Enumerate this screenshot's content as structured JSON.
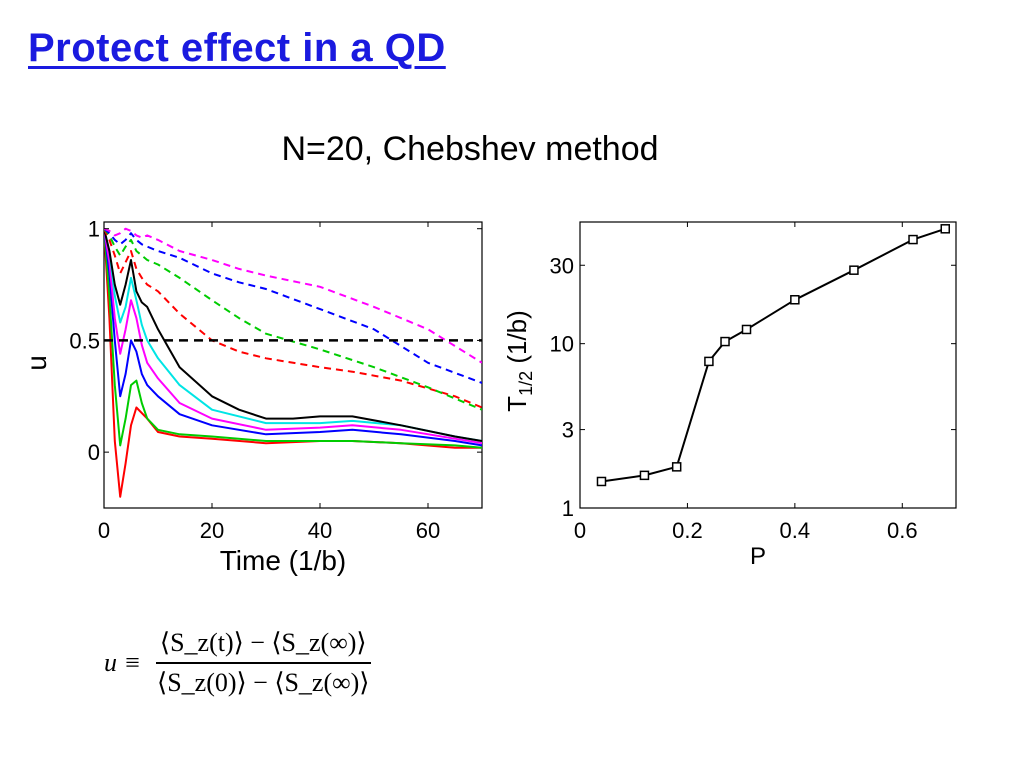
{
  "slide": {
    "title": "Protect effect in a QD",
    "subtitle": "N=20, Chebshev method",
    "formula": {
      "lhs": "u ≡",
      "numerator": "⟨S_z(t)⟩ − ⟨S_z(∞)⟩",
      "denominator": "⟨S_z(0)⟩ − ⟨S_z(∞)⟩"
    }
  },
  "chart_data": [
    {
      "type": "line",
      "xlabel": "Time (1/b)",
      "ylabel": "u",
      "xlim": [
        0,
        70
      ],
      "ylim": [
        -0.25,
        1.03
      ],
      "xticks": [
        0,
        20,
        40,
        60
      ],
      "yticks": [
        0,
        0.5,
        1
      ],
      "ytick_labels": [
        "0",
        "0.5",
        "1"
      ],
      "reference_line": {
        "y": 0.5,
        "color": "#000000",
        "style": "dashed"
      },
      "series": [
        {
          "color": "#ff0000",
          "style": "solid",
          "x": [
            0,
            1,
            2,
            3,
            4,
            5,
            6,
            8,
            10,
            14,
            20,
            30,
            40,
            46,
            55,
            65,
            70
          ],
          "y": [
            1,
            0.6,
            0.05,
            -0.2,
            -0.05,
            0.12,
            0.2,
            0.15,
            0.09,
            0.07,
            0.06,
            0.04,
            0.05,
            0.05,
            0.04,
            0.02,
            0.02
          ]
        },
        {
          "color": "#00cc00",
          "style": "solid",
          "x": [
            0,
            1,
            2,
            3,
            4,
            5,
            6,
            7,
            8,
            10,
            14,
            20,
            30,
            40,
            46,
            55,
            65,
            70
          ],
          "y": [
            1,
            0.7,
            0.3,
            0.03,
            0.15,
            0.3,
            0.32,
            0.22,
            0.15,
            0.1,
            0.08,
            0.07,
            0.05,
            0.05,
            0.05,
            0.04,
            0.03,
            0.02
          ]
        },
        {
          "color": "#0000ff",
          "style": "solid",
          "x": [
            0,
            1,
            2,
            3,
            4,
            5,
            6,
            7,
            8,
            10,
            14,
            20,
            30,
            40,
            46,
            55,
            65,
            70
          ],
          "y": [
            1,
            0.8,
            0.5,
            0.25,
            0.35,
            0.5,
            0.45,
            0.35,
            0.3,
            0.25,
            0.17,
            0.12,
            0.08,
            0.09,
            0.1,
            0.08,
            0.05,
            0.03
          ]
        },
        {
          "color": "#ff00ff",
          "style": "solid",
          "x": [
            0,
            1,
            2,
            3,
            4,
            5,
            6,
            7,
            8,
            10,
            14,
            20,
            30,
            40,
            46,
            55,
            65,
            70
          ],
          "y": [
            1,
            0.85,
            0.6,
            0.44,
            0.55,
            0.68,
            0.6,
            0.48,
            0.4,
            0.33,
            0.22,
            0.15,
            0.1,
            0.11,
            0.12,
            0.1,
            0.06,
            0.04
          ]
        },
        {
          "color": "#00e5e5",
          "style": "solid",
          "x": [
            0,
            1,
            2,
            3,
            4,
            5,
            6,
            7,
            8,
            10,
            14,
            20,
            30,
            40,
            46,
            55,
            65,
            70
          ],
          "y": [
            1,
            0.9,
            0.7,
            0.58,
            0.65,
            0.78,
            0.68,
            0.57,
            0.5,
            0.42,
            0.3,
            0.19,
            0.13,
            0.13,
            0.14,
            0.12,
            0.07,
            0.05
          ]
        },
        {
          "color": "#000000",
          "style": "solid",
          "x": [
            0,
            1,
            2,
            3,
            4,
            5,
            6,
            7,
            8,
            10,
            14,
            20,
            25,
            30,
            35,
            40,
            46,
            55,
            65,
            70
          ],
          "y": [
            1,
            0.9,
            0.75,
            0.66,
            0.75,
            0.86,
            0.72,
            0.67,
            0.65,
            0.55,
            0.38,
            0.25,
            0.19,
            0.15,
            0.15,
            0.16,
            0.16,
            0.12,
            0.07,
            0.05
          ]
        },
        {
          "color": "#ff0000",
          "style": "dashed",
          "x": [
            0,
            1,
            2,
            3,
            4,
            5,
            6,
            7,
            8,
            10,
            14,
            20,
            25,
            30,
            40,
            46,
            55,
            65,
            70
          ],
          "y": [
            1,
            0.95,
            0.88,
            0.8,
            0.85,
            0.9,
            0.82,
            0.78,
            0.75,
            0.72,
            0.62,
            0.5,
            0.45,
            0.42,
            0.38,
            0.36,
            0.32,
            0.25,
            0.2
          ]
        },
        {
          "color": "#00cc00",
          "style": "dashed",
          "x": [
            0,
            1,
            2,
            3,
            4,
            5,
            6,
            7,
            8,
            10,
            14,
            20,
            25,
            30,
            40,
            50,
            60,
            70
          ],
          "y": [
            1,
            0.97,
            0.92,
            0.88,
            0.92,
            0.95,
            0.9,
            0.88,
            0.86,
            0.84,
            0.78,
            0.68,
            0.6,
            0.53,
            0.46,
            0.38,
            0.29,
            0.19
          ]
        },
        {
          "color": "#0000ff",
          "style": "dashed",
          "x": [
            0,
            1,
            2,
            3,
            4,
            5,
            6,
            7,
            8,
            10,
            14,
            20,
            25,
            30,
            40,
            50,
            60,
            70
          ],
          "y": [
            1,
            0.98,
            0.95,
            0.93,
            0.95,
            0.98,
            0.95,
            0.93,
            0.92,
            0.9,
            0.87,
            0.8,
            0.76,
            0.73,
            0.64,
            0.55,
            0.4,
            0.31
          ]
        },
        {
          "color": "#ff00ff",
          "style": "dashed",
          "x": [
            0,
            1,
            2,
            3,
            4,
            5,
            6,
            7,
            8,
            10,
            14,
            20,
            25,
            30,
            40,
            50,
            60,
            70
          ],
          "y": [
            1,
            0.99,
            0.97,
            0.98,
            1,
            0.99,
            0.97,
            0.96,
            0.97,
            0.95,
            0.9,
            0.86,
            0.82,
            0.79,
            0.74,
            0.65,
            0.55,
            0.4
          ]
        }
      ]
    },
    {
      "type": "line",
      "xlabel": "P",
      "ylabel": "T",
      "ylabel_sub": "1/2",
      "ylabel_suffix": " (1/b)",
      "yscale": "log",
      "xlim": [
        0,
        0.7
      ],
      "ylim": [
        1,
        55
      ],
      "xticks": [
        0,
        0.2,
        0.4,
        0.6
      ],
      "xtick_labels": [
        "0",
        "0.2",
        "0.4",
        "0.6"
      ],
      "yticks": [
        1,
        3,
        10,
        30
      ],
      "marker": "square",
      "series": [
        {
          "color": "#000000",
          "x": [
            0.04,
            0.12,
            0.18,
            0.24,
            0.27,
            0.31,
            0.4,
            0.51,
            0.62,
            0.68
          ],
          "y": [
            1.45,
            1.58,
            1.78,
            7.8,
            10.3,
            12.2,
            18.5,
            28,
            43,
            50
          ]
        }
      ]
    }
  ]
}
